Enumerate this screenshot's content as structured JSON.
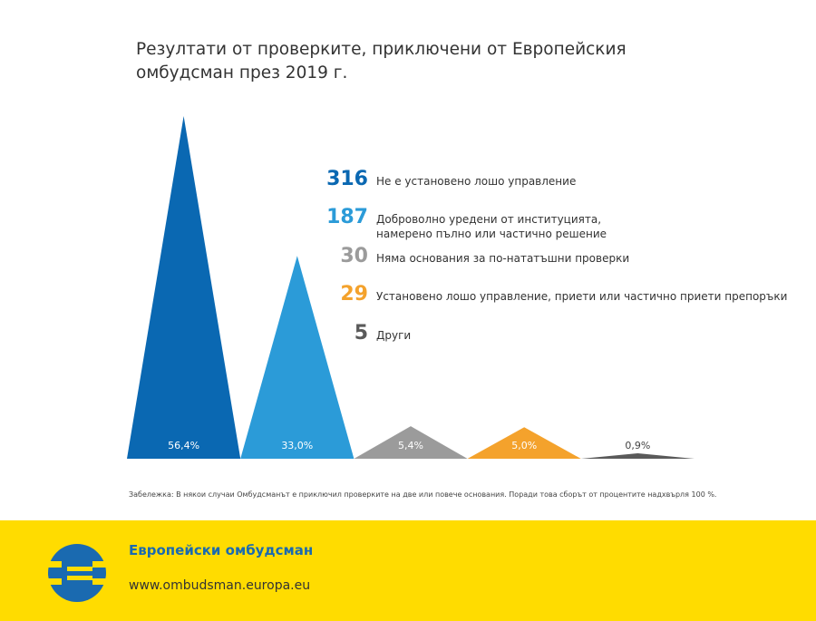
{
  "chart_data": {
    "type": "triangle",
    "title": "Резултати от проверките, приключени от Европейския омбудсман през 2019 г.",
    "categories": [
      "Не е установено лошо управление",
      "Доброволно уредени от институцията, намерено пълно или частично решение",
      "Няма основания за по-нататъшни проверки",
      "Установено лошо управление, приети или частично приети препоръки",
      "Други"
    ],
    "values": [
      316,
      187,
      30,
      29,
      5
    ],
    "colors": [
      "#0a68b2",
      "#2b9bd8",
      "#9b9b9b",
      "#f4a22c",
      "#5a5a5a"
    ],
    "shares": [
      56.4,
      33.0,
      5.4,
      5.0,
      0.9
    ],
    "share_labels": [
      "56,4%",
      "33,0%",
      "5,4%",
      "5,0%",
      "0,9%"
    ],
    "note": "Забележка: В някои случаи Омбудсманът е приключил проверките на две или повече основания. Поради това сборът от процентите надхвърля 100 %."
  },
  "footer": {
    "organization": "Европейски омбудсман",
    "url": "www.ombudsman.europa.eu"
  }
}
